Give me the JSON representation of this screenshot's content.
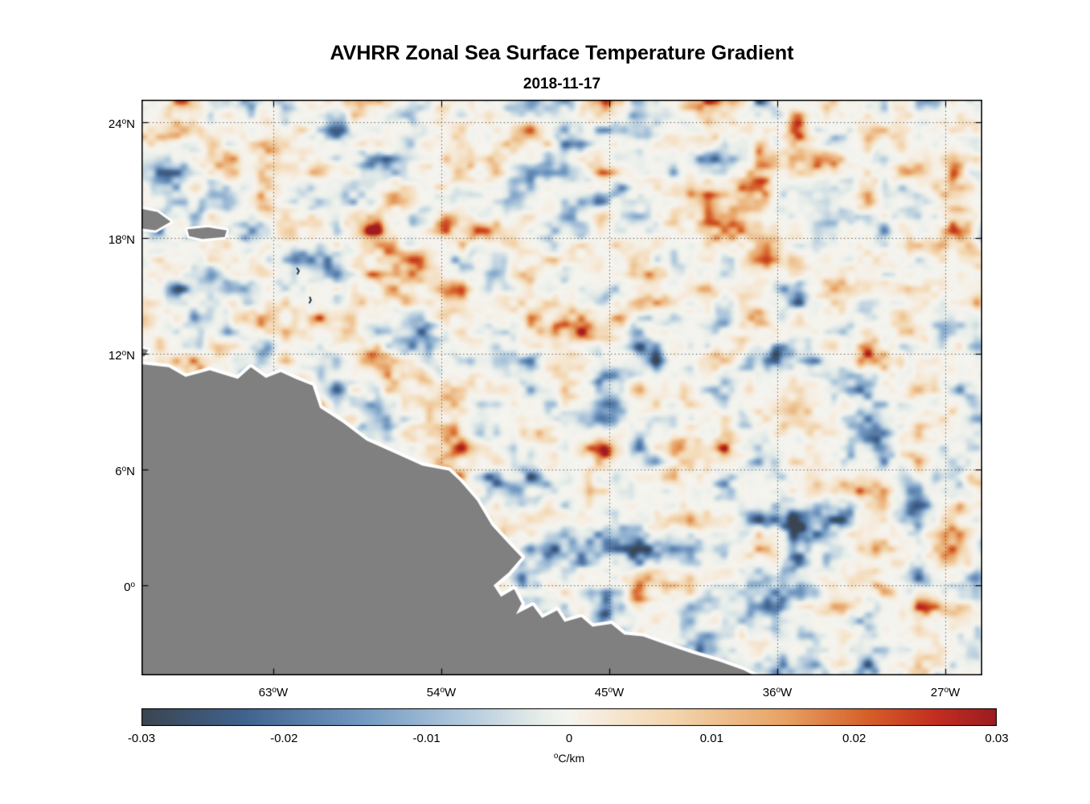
{
  "window": {
    "background": "#ffffff"
  },
  "chart_data": {
    "type": "heatmap",
    "title": "AVHRR Zonal Sea Surface Temperature Gradient",
    "subtitle": "2018-11-17",
    "projection": "lon-lat",
    "lon_range": [
      -70.06,
      -25.02
    ],
    "lat_range": [
      -4.67,
      25.17
    ],
    "x_ticks": [
      {
        "lon": -63,
        "num": "63",
        "hemi": "W"
      },
      {
        "lon": -54,
        "num": "54",
        "hemi": "W"
      },
      {
        "lon": -45,
        "num": "45",
        "hemi": "W"
      },
      {
        "lon": -36,
        "num": "36",
        "hemi": "W"
      },
      {
        "lon": -27,
        "num": "27",
        "hemi": "W"
      }
    ],
    "y_ticks": [
      {
        "lat": 24,
        "num": "24",
        "hemi": "N"
      },
      {
        "lat": 18,
        "num": "18",
        "hemi": "N"
      },
      {
        "lat": 12,
        "num": "12",
        "hemi": "N"
      },
      {
        "lat": 6,
        "num": "6",
        "hemi": "N"
      },
      {
        "lat": 0,
        "num": "0",
        "hemi": ""
      }
    ],
    "grid": {
      "on": true,
      "style": "dotted",
      "color": "rgba(45,45,45,0.85)"
    },
    "field": {
      "description": "Zonal SST gradient: mostly near-zero pale field with scattered mesoscale positive (orange-red) and negative (blue) blobs; land masked gray with white coastal data gap",
      "value_range": [
        -0.03,
        0.03
      ]
    },
    "colorbar": {
      "orientation": "horizontal",
      "min": -0.03,
      "max": 0.03,
      "ticks": [
        -0.03,
        -0.02,
        -0.01,
        0,
        0.01,
        0.02,
        0.03
      ],
      "tick_labels": [
        "-0.03",
        "-0.02",
        "-0.01",
        "0",
        "0.01",
        "0.02",
        "0.03"
      ],
      "unit_sup": "o",
      "unit": "C/km"
    },
    "colormap": [
      {
        "t": 0.0,
        "c": "#3a4551"
      },
      {
        "t": 0.12,
        "c": "#40628e"
      },
      {
        "t": 0.25,
        "c": "#6e95bf"
      },
      {
        "t": 0.38,
        "c": "#b3cbde"
      },
      {
        "t": 0.47,
        "c": "#e8eeea"
      },
      {
        "t": 0.5,
        "c": "#f5f4ef"
      },
      {
        "t": 0.53,
        "c": "#f6ecdd"
      },
      {
        "t": 0.62,
        "c": "#f3d6af"
      },
      {
        "t": 0.75,
        "c": "#e8a366"
      },
      {
        "t": 0.85,
        "c": "#d55f28"
      },
      {
        "t": 0.93,
        "c": "#c22d20"
      },
      {
        "t": 1.0,
        "c": "#9c1c20"
      }
    ],
    "land": {
      "color": "#808080",
      "coast_halo": "#ffffff",
      "speck_color": "#2a3444"
    },
    "land_polygons": {
      "mainland": [
        [
          -70.5,
          11.5
        ],
        [
          -68.6,
          11.3
        ],
        [
          -67.7,
          10.8
        ],
        [
          -66.4,
          11.15
        ],
        [
          -64.9,
          10.7
        ],
        [
          -64.2,
          11.3
        ],
        [
          -63.4,
          10.75
        ],
        [
          -62.6,
          11.05
        ],
        [
          -61.8,
          10.7
        ],
        [
          -60.9,
          10.35
        ],
        [
          -60.5,
          9.2
        ],
        [
          -59.3,
          8.45
        ],
        [
          -58.0,
          7.5
        ],
        [
          -56.6,
          6.9
        ],
        [
          -55.0,
          6.2
        ],
        [
          -53.6,
          5.95
        ],
        [
          -53.0,
          5.4
        ],
        [
          -52.1,
          4.4
        ],
        [
          -51.3,
          3.1
        ],
        [
          -50.3,
          2.05
        ],
        [
          -49.7,
          1.45
        ],
        [
          -50.4,
          0.65
        ],
        [
          -51.2,
          0.0
        ],
        [
          -50.8,
          -0.6
        ],
        [
          -50.1,
          -0.2
        ],
        [
          -49.7,
          -0.95
        ],
        [
          -50.0,
          -1.5
        ],
        [
          -49.1,
          -1.05
        ],
        [
          -48.6,
          -1.7
        ],
        [
          -47.8,
          -1.3
        ],
        [
          -47.4,
          -1.9
        ],
        [
          -46.5,
          -1.65
        ],
        [
          -45.9,
          -2.15
        ],
        [
          -44.9,
          -2.0
        ],
        [
          -44.2,
          -2.55
        ],
        [
          -43.2,
          -2.65
        ],
        [
          -41.9,
          -3.1
        ],
        [
          -40.5,
          -3.55
        ],
        [
          -39.1,
          -3.95
        ],
        [
          -37.8,
          -4.4
        ],
        [
          -36.9,
          -4.85
        ],
        [
          -36.6,
          -5.3
        ],
        [
          -70.5,
          -5.3
        ]
      ],
      "islands": [
        [
          [
            -70.5,
            19.6
          ],
          [
            -69.2,
            19.35
          ],
          [
            -68.5,
            18.85
          ],
          [
            -69.3,
            18.4
          ],
          [
            -70.5,
            18.55
          ]
        ],
        [
          [
            -67.6,
            18.45
          ],
          [
            -66.5,
            18.55
          ],
          [
            -65.5,
            18.4
          ],
          [
            -65.6,
            18.05
          ],
          [
            -66.8,
            17.95
          ],
          [
            -67.5,
            18.1
          ]
        ],
        [
          [
            -70.5,
            12.35
          ],
          [
            -69.7,
            12.2
          ],
          [
            -69.9,
            11.85
          ],
          [
            -70.5,
            11.9
          ]
        ]
      ],
      "specks": [
        [
          [
            -61.75,
            16.45
          ],
          [
            -61.62,
            16.3
          ],
          [
            -61.72,
            16.12
          ]
        ],
        [
          [
            -61.05,
            14.95
          ],
          [
            -60.98,
            14.78
          ],
          [
            -61.08,
            14.62
          ]
        ]
      ]
    }
  }
}
